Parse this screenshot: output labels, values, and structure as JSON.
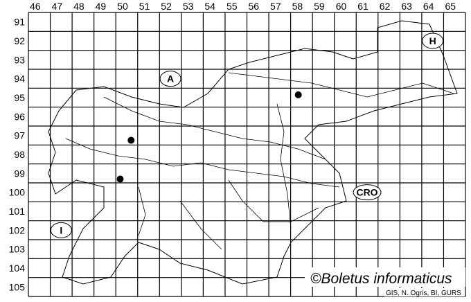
{
  "map": {
    "column_labels": [
      "46",
      "47",
      "48",
      "49",
      "50",
      "51",
      "52",
      "53",
      "54",
      "55",
      "56",
      "57",
      "58",
      "59",
      "60",
      "61",
      "62",
      "63",
      "64",
      "65"
    ],
    "row_labels": [
      "91",
      "92",
      "93",
      "94",
      "95",
      "96",
      "97",
      "98",
      "99",
      "100",
      "101",
      "102",
      "103",
      "104",
      "105"
    ],
    "country_labels": [
      {
        "text": "A",
        "cell": [
          "52",
          "94"
        ]
      },
      {
        "text": "H",
        "cell": [
          "64",
          "92"
        ]
      },
      {
        "text": "CRO",
        "cell": [
          "61",
          "100"
        ]
      },
      {
        "text": "I",
        "cell": [
          "47",
          "102"
        ]
      }
    ],
    "occurrences": [
      {
        "column": "50",
        "row": "97"
      },
      {
        "column": "50",
        "row": "99"
      },
      {
        "column": "58",
        "row": "95"
      }
    ],
    "copyright": "©Boletus informaticus",
    "credit": "GIS, N. Ogris, BI, GURS",
    "colors": {
      "lines": "#000000",
      "background": "#ffffff",
      "dots": "#000000"
    }
  }
}
